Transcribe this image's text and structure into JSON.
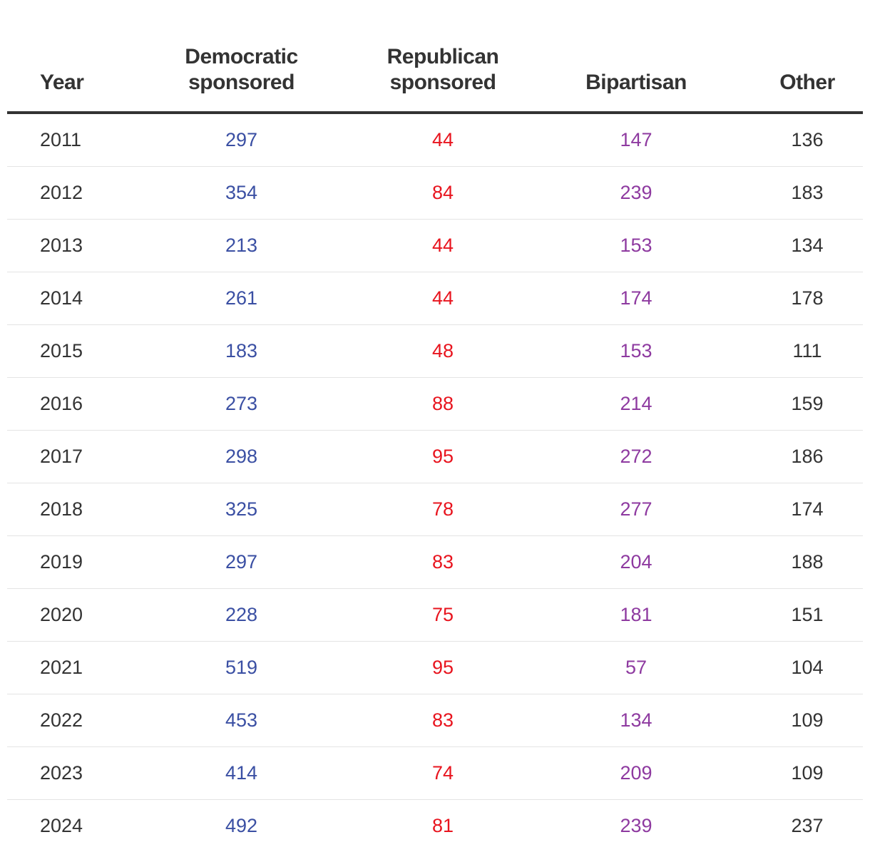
{
  "chart_data": {
    "type": "table",
    "columns": [
      {
        "key": "year",
        "label": "Year"
      },
      {
        "key": "democratic",
        "label": "Democratic sponsored",
        "label_lines": [
          "Democratic",
          "sponsored"
        ],
        "color": "#3a4fa3"
      },
      {
        "key": "republican",
        "label": "Republican sponsored",
        "label_lines": [
          "Republican",
          "sponsored"
        ],
        "color": "#e8141e"
      },
      {
        "key": "bipartisan",
        "label": "Bipartisan",
        "color": "#8e3aa0"
      },
      {
        "key": "other",
        "label": "Other",
        "color": "#333333"
      }
    ],
    "rows": [
      {
        "year": "2011",
        "democratic": 297,
        "republican": 44,
        "bipartisan": 147,
        "other": 136
      },
      {
        "year": "2012",
        "democratic": 354,
        "republican": 84,
        "bipartisan": 239,
        "other": 183
      },
      {
        "year": "2013",
        "democratic": 213,
        "republican": 44,
        "bipartisan": 153,
        "other": 134
      },
      {
        "year": "2014",
        "democratic": 261,
        "republican": 44,
        "bipartisan": 174,
        "other": 178
      },
      {
        "year": "2015",
        "democratic": 183,
        "republican": 48,
        "bipartisan": 153,
        "other": 111
      },
      {
        "year": "2016",
        "democratic": 273,
        "republican": 88,
        "bipartisan": 214,
        "other": 159
      },
      {
        "year": "2017",
        "democratic": 298,
        "republican": 95,
        "bipartisan": 272,
        "other": 186
      },
      {
        "year": "2018",
        "democratic": 325,
        "republican": 78,
        "bipartisan": 277,
        "other": 174
      },
      {
        "year": "2019",
        "democratic": 297,
        "republican": 83,
        "bipartisan": 204,
        "other": 188
      },
      {
        "year": "2020",
        "democratic": 228,
        "republican": 75,
        "bipartisan": 181,
        "other": 151
      },
      {
        "year": "2021",
        "democratic": 519,
        "republican": 95,
        "bipartisan": 57,
        "other": 104
      },
      {
        "year": "2022",
        "democratic": 453,
        "republican": 83,
        "bipartisan": 134,
        "other": 109
      },
      {
        "year": "2023",
        "democratic": 414,
        "republican": 74,
        "bipartisan": 209,
        "other": 109
      },
      {
        "year": "2024",
        "democratic": 492,
        "republican": 81,
        "bipartisan": 239,
        "other": 237
      }
    ]
  }
}
